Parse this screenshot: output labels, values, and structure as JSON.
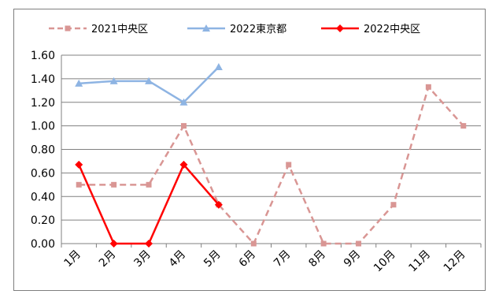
{
  "chart_data": {
    "type": "line",
    "categories": [
      "1月",
      "2月",
      "3月",
      "4月",
      "5月",
      "6月",
      "7月",
      "8月",
      "9月",
      "10月",
      "11月",
      "12月"
    ],
    "ylim": [
      0,
      1.6
    ],
    "yticks": [
      "0.00",
      "0.20",
      "0.40",
      "0.60",
      "0.80",
      "1.00",
      "1.20",
      "1.40",
      "1.60"
    ],
    "grid": true,
    "legend_position": "top",
    "series": [
      {
        "name": "2021中央区",
        "color": "#d99694",
        "style": "dashed",
        "marker": "square",
        "values": [
          0.5,
          0.5,
          0.5,
          1.0,
          0.33,
          0.0,
          0.67,
          0.0,
          0.0,
          0.33,
          1.33,
          1.0
        ]
      },
      {
        "name": "2022東京都",
        "color": "#8eb4e3",
        "style": "solid",
        "marker": "triangle",
        "values": [
          1.36,
          1.38,
          1.38,
          1.2,
          1.5,
          null,
          null,
          null,
          null,
          null,
          null,
          null
        ]
      },
      {
        "name": "2022中央区",
        "color": "#ff0000",
        "style": "solid",
        "marker": "diamond",
        "values": [
          0.67,
          0.0,
          0.0,
          0.67,
          0.33,
          null,
          null,
          null,
          null,
          null,
          null,
          null
        ]
      }
    ]
  }
}
